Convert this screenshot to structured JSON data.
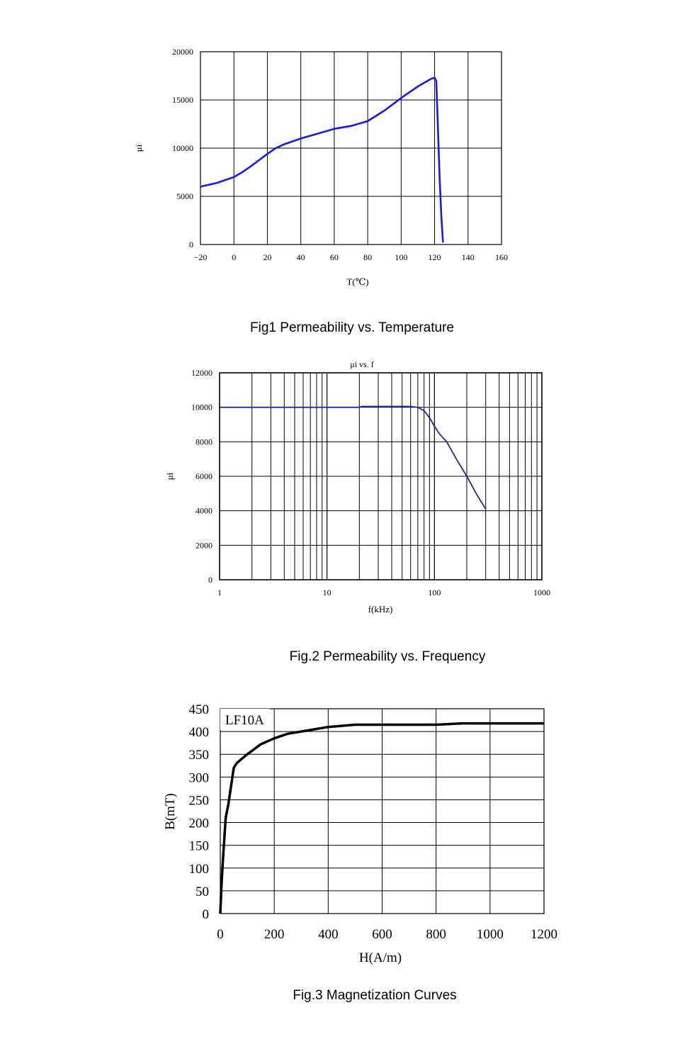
{
  "chart_data": [
    {
      "type": "line",
      "caption": "Fig1 Permeability vs. Temperature",
      "xlabel": "T(℃)",
      "ylabel": "μi",
      "xlim": [
        -20,
        160
      ],
      "ylim": [
        0,
        20000
      ],
      "x_ticks": [
        "−20",
        "0",
        "20",
        "40",
        "60",
        "80",
        "100",
        "120",
        "140",
        "160"
      ],
      "y_ticks": [
        "0",
        "5000",
        "10000",
        "15000",
        "20000"
      ],
      "grid": true,
      "line_color": "#1a1ae6",
      "x": [
        -20,
        -10,
        -5,
        0,
        5,
        10,
        20,
        25,
        30,
        40,
        50,
        60,
        70,
        80,
        90,
        100,
        110,
        118,
        120,
        121,
        122,
        123,
        124,
        125
      ],
      "y": [
        6000,
        6400,
        6700,
        7000,
        7500,
        8100,
        9400,
        10000,
        10400,
        11000,
        11500,
        12000,
        12300,
        12800,
        13900,
        15200,
        16400,
        17200,
        17300,
        17000,
        12000,
        7000,
        3000,
        200
      ]
    },
    {
      "type": "line",
      "caption": "Fig.2 Permeability vs. Frequency",
      "title": "μi vs. f",
      "xlabel": "f(kHz)",
      "ylabel": "μi",
      "xscale": "log",
      "xlim": [
        1,
        1000
      ],
      "ylim": [
        0,
        12000
      ],
      "x_ticks": [
        "1",
        "10",
        "100",
        "1000"
      ],
      "y_ticks": [
        "0",
        "2000",
        "4000",
        "6000",
        "8000",
        "10000",
        "12000"
      ],
      "grid": true,
      "line_color": "#1a2a99",
      "x": [
        1,
        20,
        21,
        40,
        60,
        70,
        80,
        90,
        100,
        110,
        130,
        160,
        200,
        250,
        300
      ],
      "y": [
        10000,
        10000,
        10050,
        10050,
        10050,
        10000,
        9800,
        9400,
        8900,
        8500,
        8000,
        7000,
        6000,
        4900,
        4100
      ]
    },
    {
      "type": "line",
      "caption": "Fig.3 Magnetization Curves",
      "xlabel": "H(A/m)",
      "ylabel": "B(mT)",
      "xlim": [
        0,
        1200
      ],
      "ylim": [
        0,
        450
      ],
      "x_ticks": [
        "0",
        "200",
        "400",
        "600",
        "800",
        "1000",
        "1200"
      ],
      "y_ticks": [
        "0",
        "50",
        "100",
        "150",
        "200",
        "250",
        "300",
        "350",
        "400",
        "450"
      ],
      "grid": true,
      "annotation": "LF10A",
      "line_color": "#000000",
      "x": [
        0,
        5,
        10,
        20,
        30,
        40,
        45,
        50,
        60,
        80,
        100,
        150,
        200,
        250,
        300,
        400,
        500,
        600,
        800,
        900,
        1000,
        1200
      ],
      "y": [
        0,
        70,
        120,
        210,
        240,
        280,
        300,
        320,
        330,
        340,
        350,
        372,
        385,
        395,
        400,
        410,
        415,
        415,
        415,
        418,
        418,
        418
      ]
    }
  ]
}
